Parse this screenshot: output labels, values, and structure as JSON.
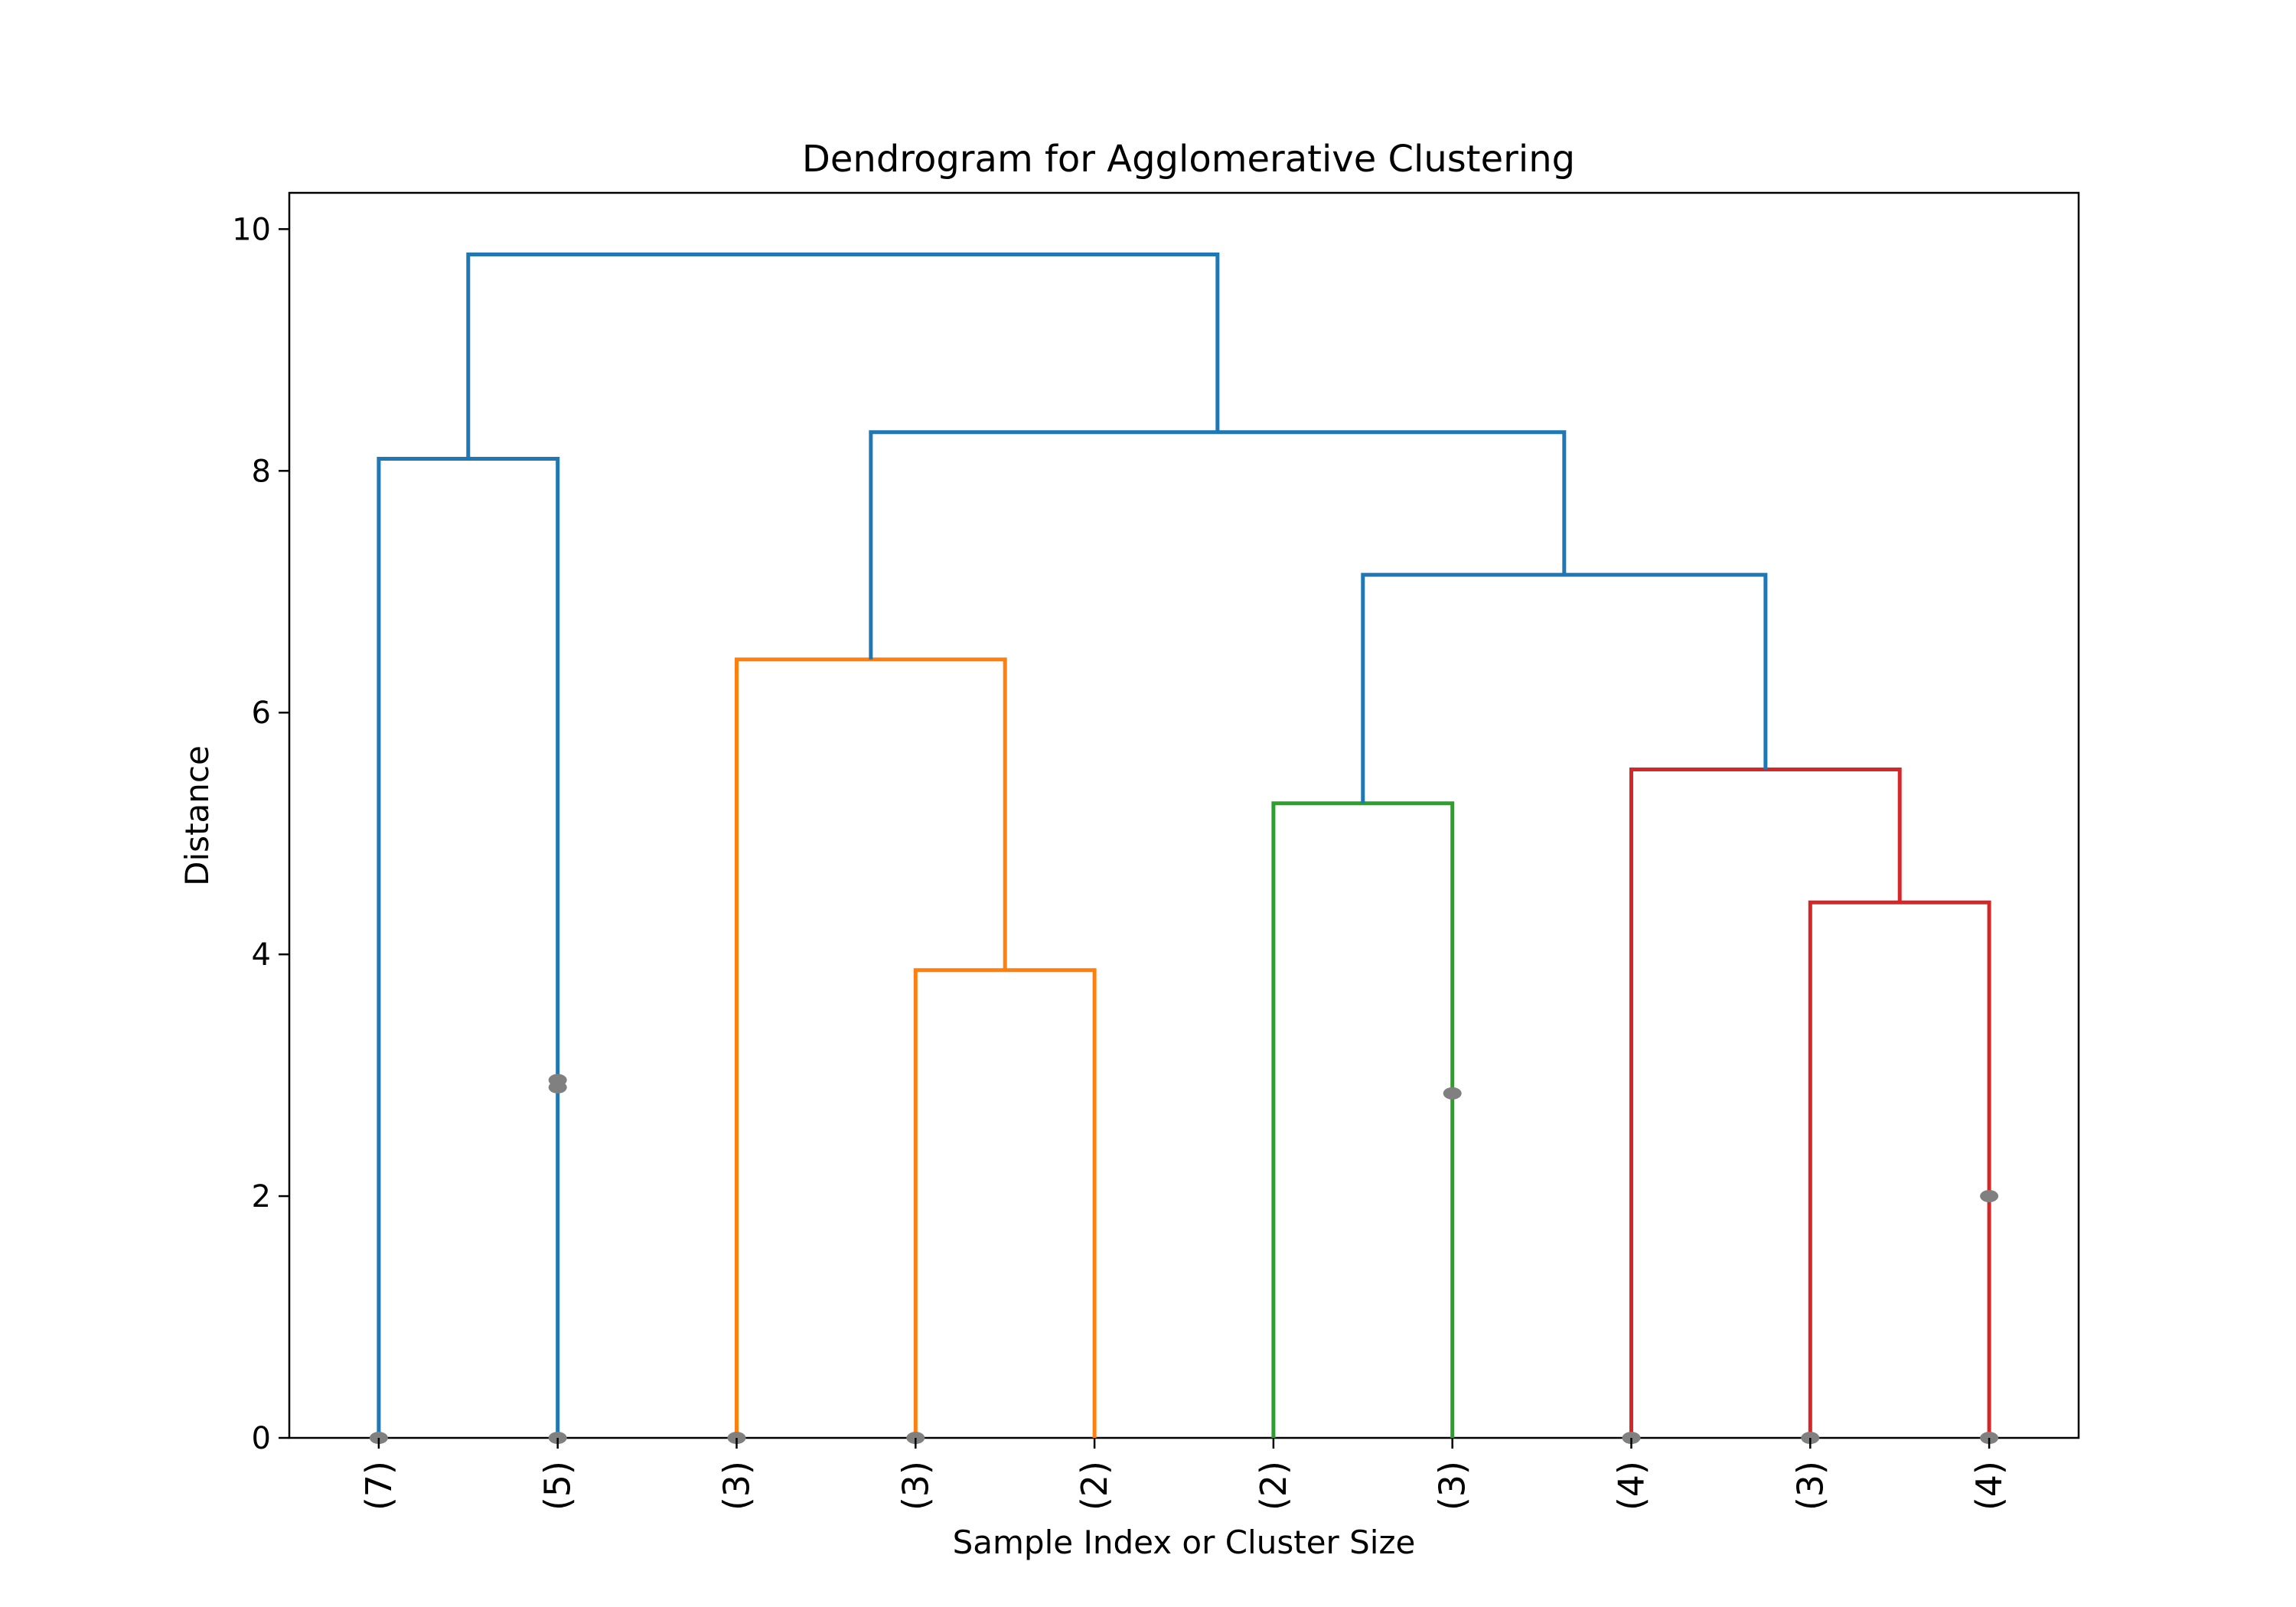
{
  "chart_data": {
    "type": "dendrogram",
    "title": "Dendrogram for Agglomerative Clustering",
    "xlabel": "Sample Index or Cluster Size",
    "ylabel": "Distance",
    "ylim": [
      0,
      10.3
    ],
    "yticks": [
      0,
      2,
      4,
      6,
      8,
      10
    ],
    "grid": false,
    "leaves": [
      "(7)",
      "(5)",
      "(3)",
      "(3)",
      "(2)",
      "(2)",
      "(3)",
      "(4)",
      "(3)",
      "(4)"
    ],
    "colors": {
      "above_threshold": "#1f77b4",
      "cluster_orange": "#ff7f0e",
      "cluster_green": "#2ca02c",
      "cluster_red": "#d62728"
    },
    "merges": [
      {
        "left": "leaf:0",
        "right": "leaf:1",
        "height": 8.1,
        "color": "#1f77b4"
      },
      {
        "left": "leaf:3",
        "right": "leaf:4",
        "height": 3.87,
        "color": "#ff7f0e"
      },
      {
        "left": "leaf:2",
        "right": "node:1",
        "height": 6.44,
        "color": "#ff7f0e"
      },
      {
        "left": "leaf:5",
        "right": "leaf:6",
        "height": 5.25,
        "color": "#2ca02c"
      },
      {
        "left": "leaf:8",
        "right": "leaf:9",
        "height": 4.43,
        "color": "#d62728"
      },
      {
        "left": "leaf:7",
        "right": "node:4",
        "height": 5.53,
        "color": "#d62728"
      },
      {
        "left": "node:3",
        "right": "node:5",
        "height": 7.14,
        "color": "#1f77b4"
      },
      {
        "left": "node:2",
        "right": "node:6",
        "height": 8.32,
        "color": "#1f77b4"
      },
      {
        "left": "node:0",
        "right": "node:7",
        "height": 9.79,
        "color": "#1f77b4"
      }
    ],
    "contraction_marks": [
      {
        "leaf": 0,
        "distance": 0
      },
      {
        "leaf": 1,
        "distance": 0
      },
      {
        "leaf": 1,
        "distance": 2.9
      },
      {
        "leaf": 1,
        "distance": 2.96
      },
      {
        "leaf": 2,
        "distance": 0
      },
      {
        "leaf": 3,
        "distance": 0
      },
      {
        "leaf": 6,
        "distance": 2.85
      },
      {
        "leaf": 7,
        "distance": 0
      },
      {
        "leaf": 8,
        "distance": 0
      },
      {
        "leaf": 9,
        "distance": 0
      },
      {
        "leaf": 9,
        "distance": 2.0
      }
    ]
  }
}
